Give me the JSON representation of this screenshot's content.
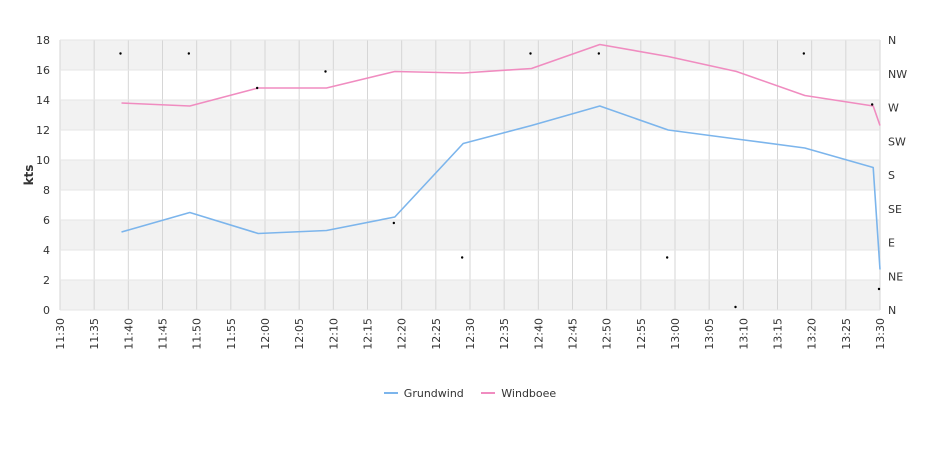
{
  "chart_data": {
    "type": "line",
    "ylabel": "kts",
    "ylim": [
      0,
      18
    ],
    "y_ticks": [
      "0",
      "2",
      "4",
      "6",
      "8",
      "10",
      "12",
      "14",
      "16",
      "18"
    ],
    "x_ticks": [
      "11:30",
      "11:35",
      "11:40",
      "11:45",
      "11:50",
      "11:55",
      "12:00",
      "12:05",
      "12:10",
      "12:15",
      "12:20",
      "12:25",
      "12:30",
      "12:35",
      "12:40",
      "12:45",
      "12:50",
      "12:55",
      "13:00",
      "13:05",
      "13:10",
      "13:15",
      "13:20",
      "13:25",
      "13:30"
    ],
    "direction_ticks": [
      "N",
      "NW",
      "W",
      "SW",
      "S",
      "SE",
      "E",
      "NE",
      "N"
    ],
    "grid": true,
    "legend_position": "bottom",
    "series": [
      {
        "name": "Grundwind",
        "color": "#7cb5ec",
        "x": [
          "11:39",
          "11:49",
          "11:59",
          "12:09",
          "12:19",
          "12:29",
          "12:39",
          "12:49",
          "12:59",
          "13:09",
          "13:19",
          "13:29",
          "13:30"
        ],
        "values": [
          5.2,
          6.5,
          5.1,
          5.3,
          6.2,
          11.1,
          12.3,
          13.6,
          12.0,
          11.4,
          10.8,
          9.5,
          2.7
        ]
      },
      {
        "name": "Windboee",
        "color": "#f08cc0",
        "x": [
          "11:39",
          "11:49",
          "11:59",
          "12:09",
          "12:19",
          "12:29",
          "12:39",
          "12:49",
          "12:59",
          "13:09",
          "13:19",
          "13:29",
          "13:30"
        ],
        "values": [
          13.8,
          13.6,
          14.8,
          14.8,
          15.9,
          15.8,
          16.1,
          17.7,
          16.9,
          15.9,
          14.3,
          13.6,
          12.3
        ]
      }
    ],
    "direction_markers": {
      "x": [
        "11:39",
        "11:49",
        "11:59",
        "12:09",
        "12:19",
        "12:29",
        "12:39",
        "12:49",
        "12:59",
        "13:09",
        "13:19",
        "13:29",
        "13:30"
      ],
      "values": [
        17.1,
        17.1,
        14.8,
        15.9,
        5.8,
        3.5,
        17.1,
        17.1,
        3.5,
        0.2,
        17.1,
        13.7,
        1.4
      ]
    }
  }
}
